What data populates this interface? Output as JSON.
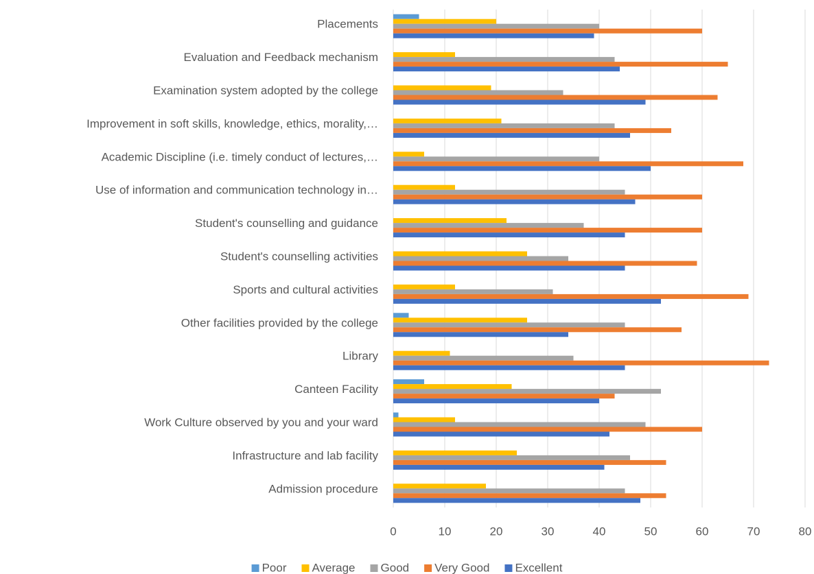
{
  "chart_data": {
    "type": "hbar",
    "categories": [
      "Placements",
      "Evaluation and Feedback mechanism",
      "Examination system adopted by the college",
      "Improvement in soft skills, knowledge, ethics, morality,…",
      "Academic Discipline (i.e. timely conduct of lectures,…",
      "Use of information and communication technology in…",
      "Student's counselling and guidance",
      "Student's counselling activities",
      "Sports and cultural activities",
      "Other facilities provided by the college",
      "Library",
      "Canteen Facility",
      "Work Culture observed by you and your ward",
      "Infrastructure and lab facility",
      "Admission procedure"
    ],
    "series": [
      {
        "name": "Poor",
        "color": "#5b9bd5",
        "values": [
          5,
          0,
          0,
          0,
          0,
          0,
          0,
          0,
          0,
          3,
          0,
          6,
          1,
          0,
          0
        ]
      },
      {
        "name": "Average",
        "color": "#ffc000",
        "values": [
          20,
          12,
          19,
          21,
          6,
          12,
          22,
          26,
          12,
          26,
          11,
          23,
          12,
          24,
          18
        ]
      },
      {
        "name": "Good",
        "color": "#a5a5a5",
        "values": [
          40,
          43,
          33,
          43,
          40,
          45,
          37,
          34,
          31,
          45,
          35,
          52,
          49,
          46,
          45
        ]
      },
      {
        "name": "Very Good",
        "color": "#ed7d31",
        "values": [
          60,
          65,
          63,
          54,
          68,
          60,
          60,
          59,
          69,
          56,
          73,
          43,
          60,
          53,
          53
        ]
      },
      {
        "name": "Excellent",
        "color": "#4472c4",
        "values": [
          39,
          44,
          49,
          46,
          50,
          47,
          45,
          45,
          52,
          34,
          45,
          40,
          42,
          41,
          48
        ]
      }
    ],
    "xlim": [
      0,
      80
    ],
    "xticks": [
      0,
      10,
      20,
      30,
      40,
      50,
      60,
      70,
      80
    ],
    "grid": true,
    "legend": "bottom"
  }
}
